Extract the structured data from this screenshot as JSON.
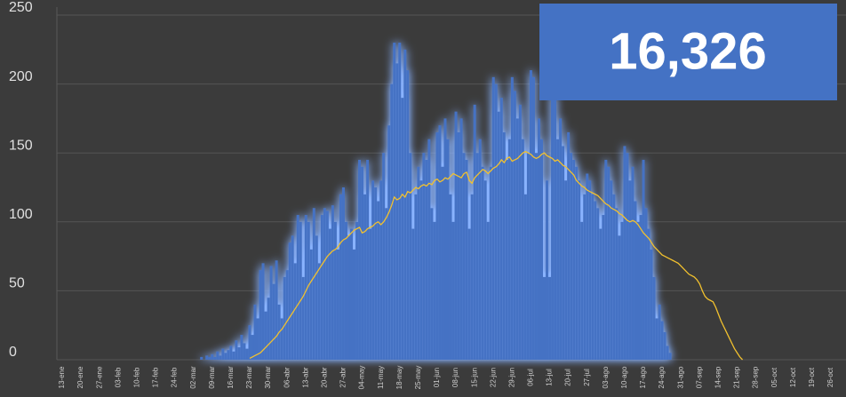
{
  "chart_data": {
    "type": "bar",
    "annotation": "16,326",
    "categories": [
      "13-ene",
      null,
      null,
      null,
      null,
      null,
      null,
      "20-ene",
      null,
      null,
      null,
      null,
      null,
      null,
      "27-ene",
      null,
      null,
      null,
      null,
      null,
      null,
      "03-feb",
      null,
      null,
      null,
      null,
      null,
      null,
      "10-feb",
      null,
      null,
      null,
      null,
      null,
      null,
      "17-feb",
      null,
      null,
      null,
      null,
      null,
      null,
      "24-feb",
      null,
      null,
      null,
      null,
      null,
      null,
      "02-mar",
      null,
      null,
      null,
      null,
      null,
      null,
      "09-mar",
      null,
      null,
      null,
      null,
      null,
      null,
      "16-mar",
      null,
      null,
      null,
      null,
      null,
      null,
      "23-mar",
      null,
      null,
      null,
      null,
      null,
      null,
      "30-mar",
      null,
      null,
      null,
      null,
      null,
      null,
      "06-abr",
      null,
      null,
      null,
      null,
      null,
      null,
      "13-abr",
      null,
      null,
      null,
      null,
      null,
      null,
      "20-abr",
      null,
      null,
      null,
      null,
      null,
      null,
      "27-abr",
      null,
      null,
      null,
      null,
      null,
      null,
      "04-may",
      null,
      null,
      null,
      null,
      null,
      null,
      "11-may",
      null,
      null,
      null,
      null,
      null,
      null,
      "18-may",
      null,
      null,
      null,
      null,
      null,
      null,
      "25-may",
      null,
      null,
      null,
      null,
      null,
      null,
      "01-jun",
      null,
      null,
      null,
      null,
      null,
      null,
      "08-jun",
      null,
      null,
      null,
      null,
      null,
      null,
      "15-jun",
      null,
      null,
      null,
      null,
      null,
      null,
      "22-jun",
      null,
      null,
      null,
      null,
      null,
      null,
      "29-jun",
      null,
      null,
      null,
      null,
      null,
      null,
      "06-jul",
      null,
      null,
      null,
      null,
      null,
      null,
      "13-jul",
      null,
      null,
      null,
      null,
      null,
      null,
      "20-jul",
      null,
      null,
      null,
      null,
      null,
      null,
      "27-jul",
      null,
      null,
      null,
      null,
      null,
      null,
      "03-ago",
      null,
      null,
      null,
      null,
      null,
      null,
      "10-ago",
      null,
      null,
      null,
      null,
      null,
      null,
      "17-ago",
      null,
      null,
      null,
      null,
      null,
      null,
      "24-ago",
      null,
      null,
      null,
      null,
      null,
      null,
      "31-ago",
      null,
      null,
      null,
      null,
      null,
      null,
      "07-sep",
      null,
      null,
      null,
      null,
      null,
      null,
      "14-sep",
      null,
      null,
      null,
      null,
      null,
      null,
      "21-sep",
      null,
      null,
      null,
      null,
      null,
      null,
      "28-sep",
      null,
      null,
      null,
      null,
      null,
      null,
      "05-oct",
      null,
      null,
      null,
      null,
      null,
      null,
      "12-oct",
      null,
      null,
      null,
      null,
      null,
      null,
      "19-oct",
      null,
      null,
      null,
      null,
      null,
      null,
      "26-oct",
      null,
      null,
      null,
      null,
      null,
      null
    ],
    "series": [
      {
        "type": "bar",
        "color": "#4472c4",
        "values": [
          null,
          null,
          null,
          null,
          null,
          null,
          null,
          null,
          null,
          null,
          null,
          null,
          null,
          null,
          null,
          null,
          null,
          null,
          null,
          null,
          null,
          null,
          null,
          null,
          null,
          null,
          null,
          null,
          null,
          null,
          null,
          null,
          null,
          null,
          null,
          null,
          null,
          null,
          null,
          null,
          null,
          null,
          null,
          null,
          null,
          null,
          null,
          null,
          null,
          null,
          null,
          null,
          2,
          null,
          3,
          2,
          4,
          2,
          6,
          3,
          8,
          5,
          7,
          10,
          6,
          14,
          9,
          18,
          12,
          8,
          25,
          18,
          40,
          30,
          65,
          70,
          35,
          45,
          68,
          55,
          72,
          40,
          30,
          60,
          65,
          85,
          90,
          70,
          105,
          100,
          60,
          105,
          100,
          80,
          110,
          90,
          70,
          105,
          110,
          108,
          95,
          112,
          100,
          80,
          120,
          125,
          100,
          90,
          95,
          80,
          100,
          145,
          140,
          120,
          145,
          95,
          130,
          125,
          115,
          130,
          150,
          110,
          170,
          200,
          230,
          215,
          230,
          190,
          225,
          210,
          150,
          95,
          120,
          140,
          130,
          150,
          145,
          160,
          110,
          100,
          165,
          170,
          140,
          175,
          160,
          120,
          100,
          180,
          165,
          175,
          150,
          145,
          95,
          120,
          185,
          150,
          160,
          140,
          130,
          100,
          140,
          205,
          200,
          180,
          190,
          165,
          145,
          160,
          205,
          195,
          175,
          185,
          160,
          120,
          150,
          210,
          205,
          150,
          175,
          160,
          60,
          130,
          60,
          200,
          190,
          160,
          175,
          155,
          130,
          165,
          150,
          145,
          140,
          130,
          100,
          120,
          135,
          130,
          120,
          115,
          110,
          95,
          105,
          145,
          140,
          130,
          120,
          110,
          90,
          100,
          155,
          150,
          130,
          140,
          115,
          100,
          105,
          145,
          110,
          95,
          80,
          60,
          30,
          40,
          28,
          20,
          10,
          5,
          null,
          null,
          null,
          null,
          null,
          null,
          null,
          null,
          null,
          null,
          null,
          null,
          null,
          null,
          null,
          null,
          null,
          null,
          null,
          null,
          null,
          null,
          null,
          null,
          null,
          null,
          null,
          null,
          null,
          null,
          null,
          null,
          null,
          null,
          null,
          null,
          null,
          null,
          null,
          null,
          null,
          null,
          null,
          null,
          null,
          null,
          null,
          null,
          null,
          null,
          null,
          null,
          null,
          null,
          null,
          null,
          null,
          null,
          null,
          null,
          null,
          null,
          null,
          null,
          null,
          null
        ]
      },
      {
        "type": "line",
        "color": "#f2c12e",
        "values": [
          null,
          null,
          null,
          null,
          null,
          null,
          null,
          null,
          null,
          null,
          null,
          null,
          null,
          null,
          null,
          null,
          null,
          null,
          null,
          null,
          null,
          null,
          null,
          null,
          null,
          null,
          null,
          null,
          null,
          null,
          null,
          null,
          null,
          null,
          null,
          null,
          null,
          null,
          null,
          null,
          null,
          null,
          null,
          null,
          null,
          null,
          null,
          null,
          null,
          null,
          null,
          null,
          null,
          null,
          null,
          null,
          null,
          null,
          null,
          null,
          null,
          null,
          null,
          null,
          null,
          null,
          null,
          null,
          null,
          null,
          1,
          2,
          3,
          4,
          5,
          7,
          9,
          11,
          13,
          15,
          17,
          20,
          22,
          25,
          28,
          31,
          34,
          37,
          40,
          43,
          46,
          50,
          54,
          57,
          60,
          63,
          66,
          69,
          72,
          75,
          77,
          79,
          80,
          82,
          85,
          87,
          88,
          90,
          92,
          94,
          95,
          96,
          92,
          93,
          95,
          96,
          97,
          99,
          100,
          98,
          100,
          103,
          107,
          112,
          118,
          116,
          117,
          120,
          118,
          122,
          121,
          123,
          125,
          124,
          126,
          127,
          126,
          128,
          127,
          130,
          131,
          129,
          130,
          132,
          131,
          133,
          135,
          134,
          133,
          132,
          135,
          136,
          130,
          128,
          132,
          134,
          136,
          138,
          137,
          135,
          137,
          139,
          140,
          142,
          145,
          143,
          146,
          147,
          144,
          145,
          146,
          148,
          150,
          151,
          150,
          149,
          147,
          146,
          147,
          149,
          150,
          148,
          147,
          146,
          144,
          145,
          143,
          141,
          140,
          138,
          136,
          134,
          130,
          128,
          126,
          125,
          123,
          122,
          121,
          120,
          119,
          117,
          115,
          113,
          112,
          110,
          109,
          108,
          106,
          105,
          103,
          101,
          100,
          101,
          100,
          98,
          95,
          92,
          90,
          88,
          85,
          82,
          80,
          78,
          76,
          75,
          74,
          73,
          72,
          71,
          70,
          68,
          66,
          64,
          62,
          61,
          60,
          58,
          55,
          50,
          46,
          44,
          43,
          42,
          38,
          33,
          28,
          24,
          20,
          16,
          12,
          8,
          5,
          2,
          0,
          null,
          null,
          null,
          null,
          null,
          null,
          null,
          null,
          null,
          null,
          null,
          null,
          null,
          null,
          null,
          null,
          null,
          null,
          null,
          null,
          null,
          null,
          null,
          null,
          null,
          null,
          null,
          null,
          null,
          null,
          null,
          null,
          null,
          null,
          null,
          null,
          null,
          null,
          null
        ]
      }
    ],
    "ylim": [
      0,
      250
    ],
    "yticks": [
      0,
      50,
      100,
      150,
      200,
      250
    ],
    "grid": true
  }
}
